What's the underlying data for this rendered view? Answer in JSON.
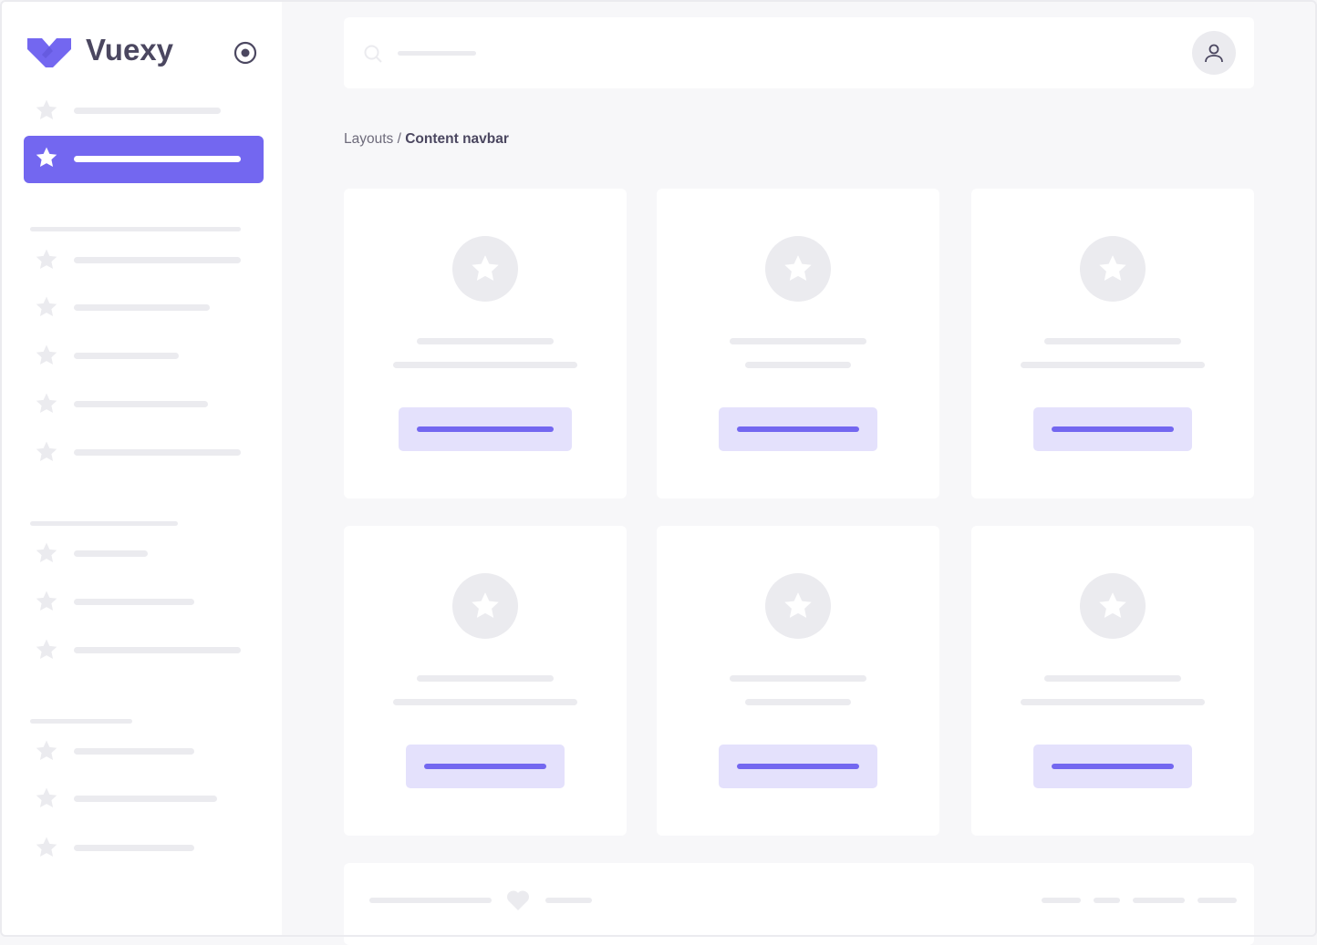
{
  "brand": {
    "name": "Vuexy",
    "color": "#7367f0"
  },
  "breadcrumb": {
    "parent": "Layouts",
    "separator": " / ",
    "current": "Content navbar"
  },
  "icons": {
    "logo": "vuexy-logo-icon",
    "pin": "radio-circle-icon",
    "menu": "star-icon",
    "search": "search-icon",
    "avatar": "user-icon",
    "footer": "heart-icon"
  },
  "colors": {
    "primary": "#7367f0",
    "primary_light": "#e4e1fc",
    "skeleton": "#ebebef",
    "background": "#f7f7f9"
  }
}
